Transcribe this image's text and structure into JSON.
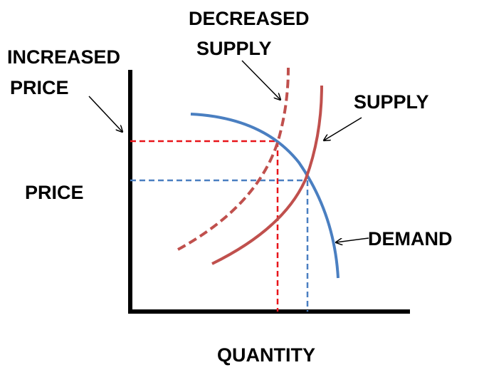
{
  "labels": {
    "decreased_supply": [
      "DECREASED",
      "SUPPLY"
    ],
    "increased_price": [
      "INCREASED",
      "PRICE"
    ],
    "supply": "SUPPLY",
    "price": "PRICE",
    "demand": "DEMAND",
    "quantity": "QUANTITY"
  }
}
